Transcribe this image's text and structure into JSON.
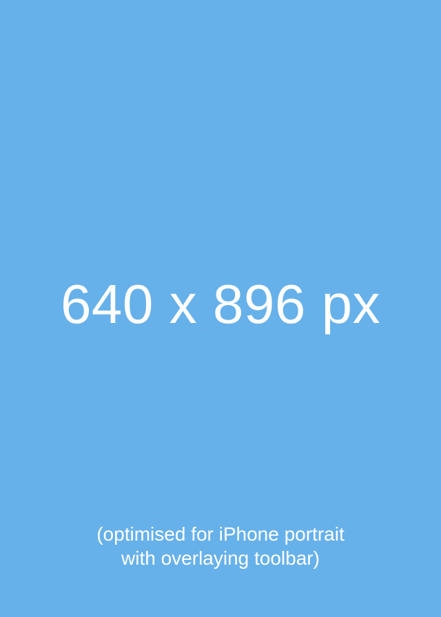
{
  "canvas": {
    "background_color": "#67b1ea",
    "text_color": "#ffffff"
  },
  "headline": "640 x 896 px",
  "caption": {
    "line1": "(optimised for iPhone portrait",
    "line2": "with overlaying toolbar)"
  }
}
